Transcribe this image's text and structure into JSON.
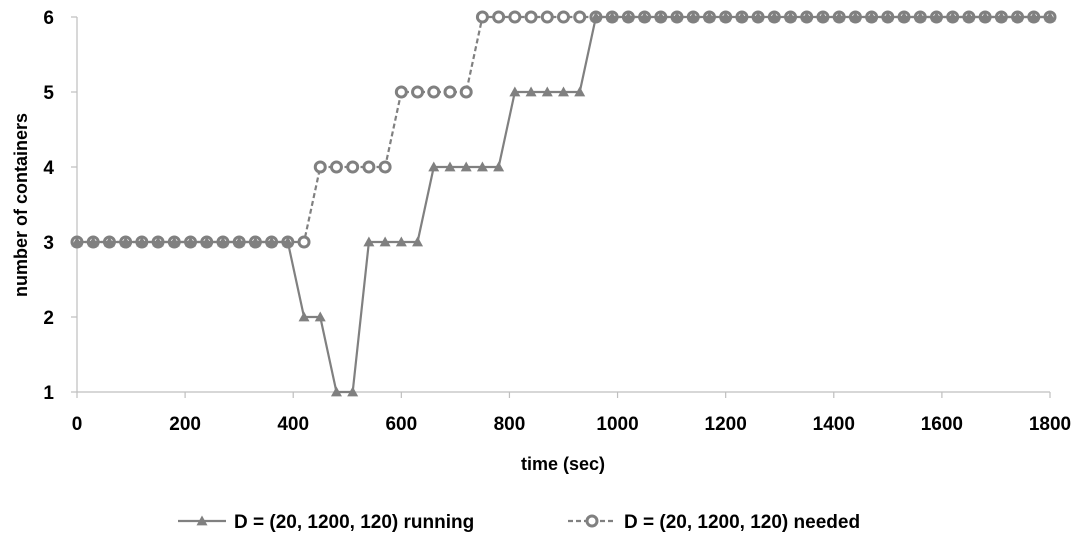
{
  "chart_data": {
    "type": "line",
    "xlabel": "time (sec)",
    "ylabel": "number of containers",
    "xlim": [
      0,
      1800
    ],
    "ylim": [
      1,
      6
    ],
    "xticks": [
      0,
      200,
      400,
      600,
      800,
      1000,
      1200,
      1400,
      1600,
      1800
    ],
    "yticks": [
      1,
      2,
      3,
      4,
      5,
      6
    ],
    "grid": false,
    "legend": "bottom",
    "series": [
      {
        "name": "D = (20, 1200, 120) running",
        "color": "#808080",
        "marker": "triangle",
        "dash": "solid",
        "x": [
          0,
          30,
          60,
          90,
          120,
          150,
          180,
          210,
          240,
          270,
          300,
          330,
          360,
          390,
          420,
          450,
          480,
          510,
          540,
          570,
          600,
          630,
          660,
          690,
          720,
          750,
          780,
          810,
          840,
          870,
          900,
          930,
          960,
          990,
          1020,
          1050,
          1080,
          1110,
          1140,
          1170,
          1200,
          1230,
          1260,
          1290,
          1320,
          1350,
          1380,
          1410,
          1440,
          1470,
          1500,
          1530,
          1560,
          1590,
          1620,
          1650,
          1680,
          1710,
          1740,
          1770,
          1800
        ],
        "y": [
          3,
          3,
          3,
          3,
          3,
          3,
          3,
          3,
          3,
          3,
          3,
          3,
          3,
          3,
          2,
          2,
          1,
          1,
          3,
          3,
          3,
          3,
          4,
          4,
          4,
          4,
          4,
          5,
          5,
          5,
          5,
          5,
          6,
          6,
          6,
          6,
          6,
          6,
          6,
          6,
          6,
          6,
          6,
          6,
          6,
          6,
          6,
          6,
          6,
          6,
          6,
          6,
          6,
          6,
          6,
          6,
          6,
          6,
          6,
          6,
          6
        ]
      },
      {
        "name": "D = (20, 1200, 120) needed",
        "color": "#808080",
        "marker": "circle",
        "dash": "dashed",
        "x": [
          0,
          30,
          60,
          90,
          120,
          150,
          180,
          210,
          240,
          270,
          300,
          330,
          360,
          390,
          420,
          450,
          480,
          510,
          540,
          570,
          600,
          630,
          660,
          690,
          720,
          750,
          780,
          810,
          840,
          870,
          900,
          930,
          960,
          990,
          1020,
          1050,
          1080,
          1110,
          1140,
          1170,
          1200,
          1230,
          1260,
          1290,
          1320,
          1350,
          1380,
          1410,
          1440,
          1470,
          1500,
          1530,
          1560,
          1590,
          1620,
          1650,
          1680,
          1710,
          1740,
          1770,
          1800
        ],
        "y": [
          3,
          3,
          3,
          3,
          3,
          3,
          3,
          3,
          3,
          3,
          3,
          3,
          3,
          3,
          3,
          4,
          4,
          4,
          4,
          4,
          5,
          5,
          5,
          5,
          5,
          6,
          6,
          6,
          6,
          6,
          6,
          6,
          6,
          6,
          6,
          6,
          6,
          6,
          6,
          6,
          6,
          6,
          6,
          6,
          6,
          6,
          6,
          6,
          6,
          6,
          6,
          6,
          6,
          6,
          6,
          6,
          6,
          6,
          6,
          6,
          6
        ]
      }
    ]
  }
}
